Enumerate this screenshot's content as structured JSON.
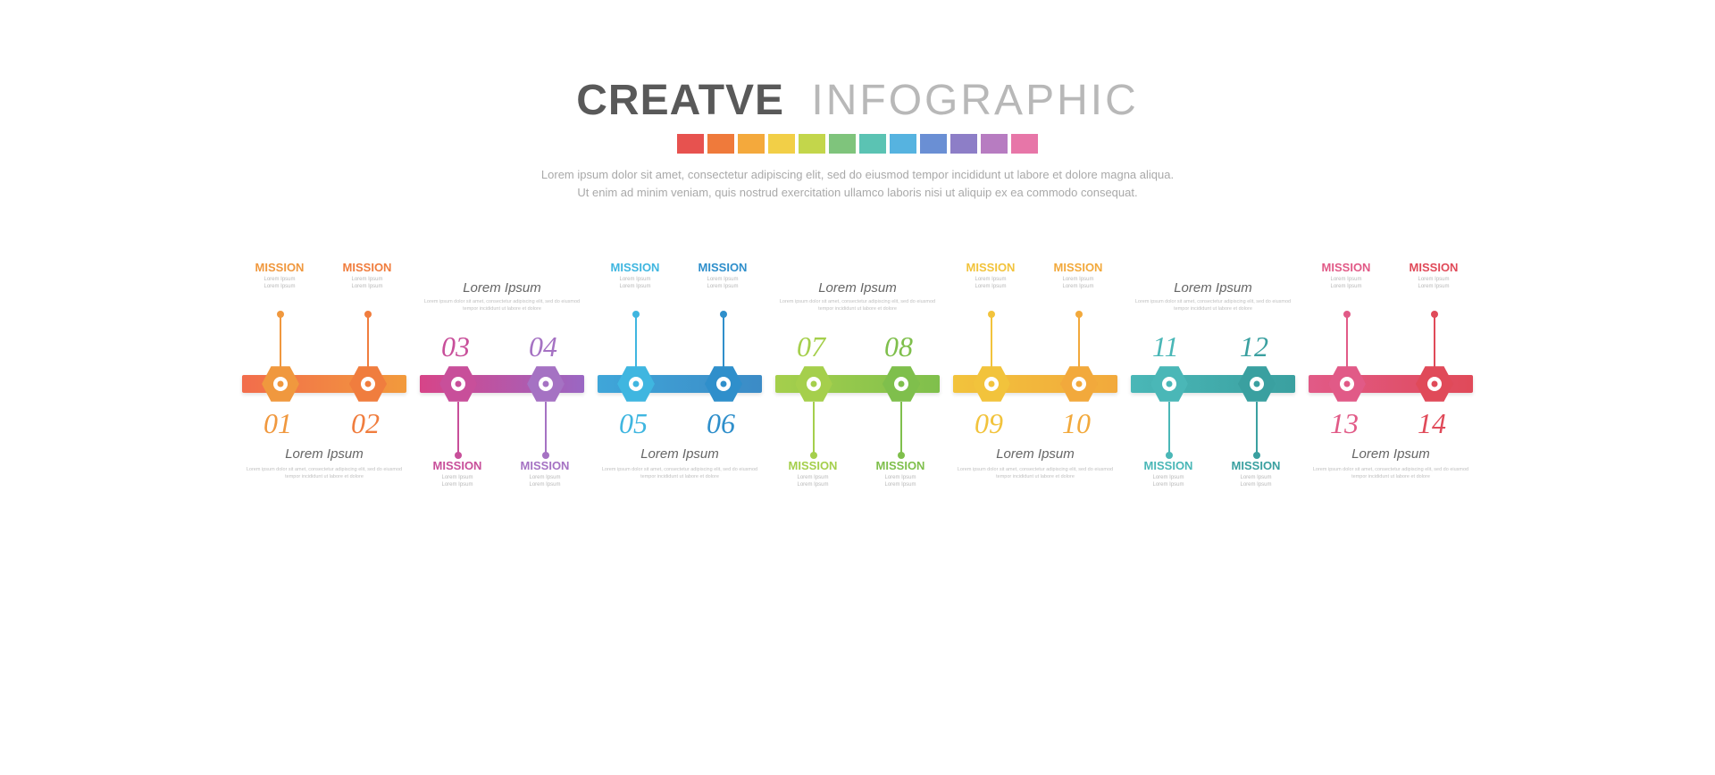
{
  "header": {
    "title_bold": "CREATVE",
    "title_light": "INFOGRAPHIC",
    "swatch_colors": [
      "#e7524f",
      "#ef7a3b",
      "#f4a93c",
      "#f2cf47",
      "#c3d64b",
      "#7fc47c",
      "#5bc3b3",
      "#56b3e0",
      "#6a8fd4",
      "#8d7ec7",
      "#b77cc1",
      "#e776a8"
    ],
    "desc_line1": "Lorem ipsum dolor sit amet, consectetur adipiscing elit, sed do eiusmod tempor incididunt ut labore et dolore magna aliqua.",
    "desc_line2": "Ut enim ad minim veniam, quis nostrud exercitation ullamco laboris nisi ut aliquip ex ea commodo consequat."
  },
  "mission_label": "MISSION",
  "mission_sub": "Lorem Ipsum\nLorem Ipsum",
  "caption": "Lorem Ipsum",
  "smalltext": "Lorem ipsum dolor sit amet, consectetur adipiscing elit, sed do eiusmod tempor incididunt ut labore et dolore",
  "panels": [
    {
      "orient": "up",
      "barA": "#f26d4c",
      "barB": "#f29a3c",
      "left": {
        "num": "01",
        "color": "#f0983e",
        "hex": "#f0983e"
      },
      "right": {
        "num": "02",
        "color": "#f07d3e",
        "hex": "#f07d3e"
      }
    },
    {
      "orient": "down",
      "barA": "#d74488",
      "barB": "#9a67c3",
      "left": {
        "num": "03",
        "color": "#c84f9a",
        "hex": "#c84f9a"
      },
      "right": {
        "num": "04",
        "color": "#a572c3",
        "hex": "#a572c3"
      }
    },
    {
      "orient": "up",
      "barA": "#3fa6d9",
      "barB": "#3c8bc6",
      "left": {
        "num": "05",
        "color": "#3fb6e0",
        "hex": "#3fb6e0"
      },
      "right": {
        "num": "06",
        "color": "#2f8fcb",
        "hex": "#2f8fcb"
      }
    },
    {
      "orient": "down",
      "barA": "#a5cf4c",
      "barB": "#7fbf4c",
      "left": {
        "num": "07",
        "color": "#a5cf4c",
        "hex": "#a5cf4c"
      },
      "right": {
        "num": "08",
        "color": "#7fbf4c",
        "hex": "#7fbf4c"
      }
    },
    {
      "orient": "up",
      "barA": "#f2c33c",
      "barB": "#f2a93c",
      "left": {
        "num": "09",
        "color": "#f2c33c",
        "hex": "#f2c33c"
      },
      "right": {
        "num": "10",
        "color": "#f2a93c",
        "hex": "#f2a93c"
      }
    },
    {
      "orient": "down",
      "barA": "#4ab7b7",
      "barB": "#3aa0a0",
      "left": {
        "num": "11",
        "color": "#4ab7b7",
        "hex": "#4ab7b7"
      },
      "right": {
        "num": "12",
        "color": "#3aa0a0",
        "hex": "#3aa0a0"
      }
    },
    {
      "orient": "up",
      "barA": "#e15a87",
      "barB": "#e04a59",
      "left": {
        "num": "13",
        "color": "#e15a87",
        "hex": "#e15a87"
      },
      "right": {
        "num": "14",
        "color": "#e04a59",
        "hex": "#e04a59"
      }
    }
  ]
}
